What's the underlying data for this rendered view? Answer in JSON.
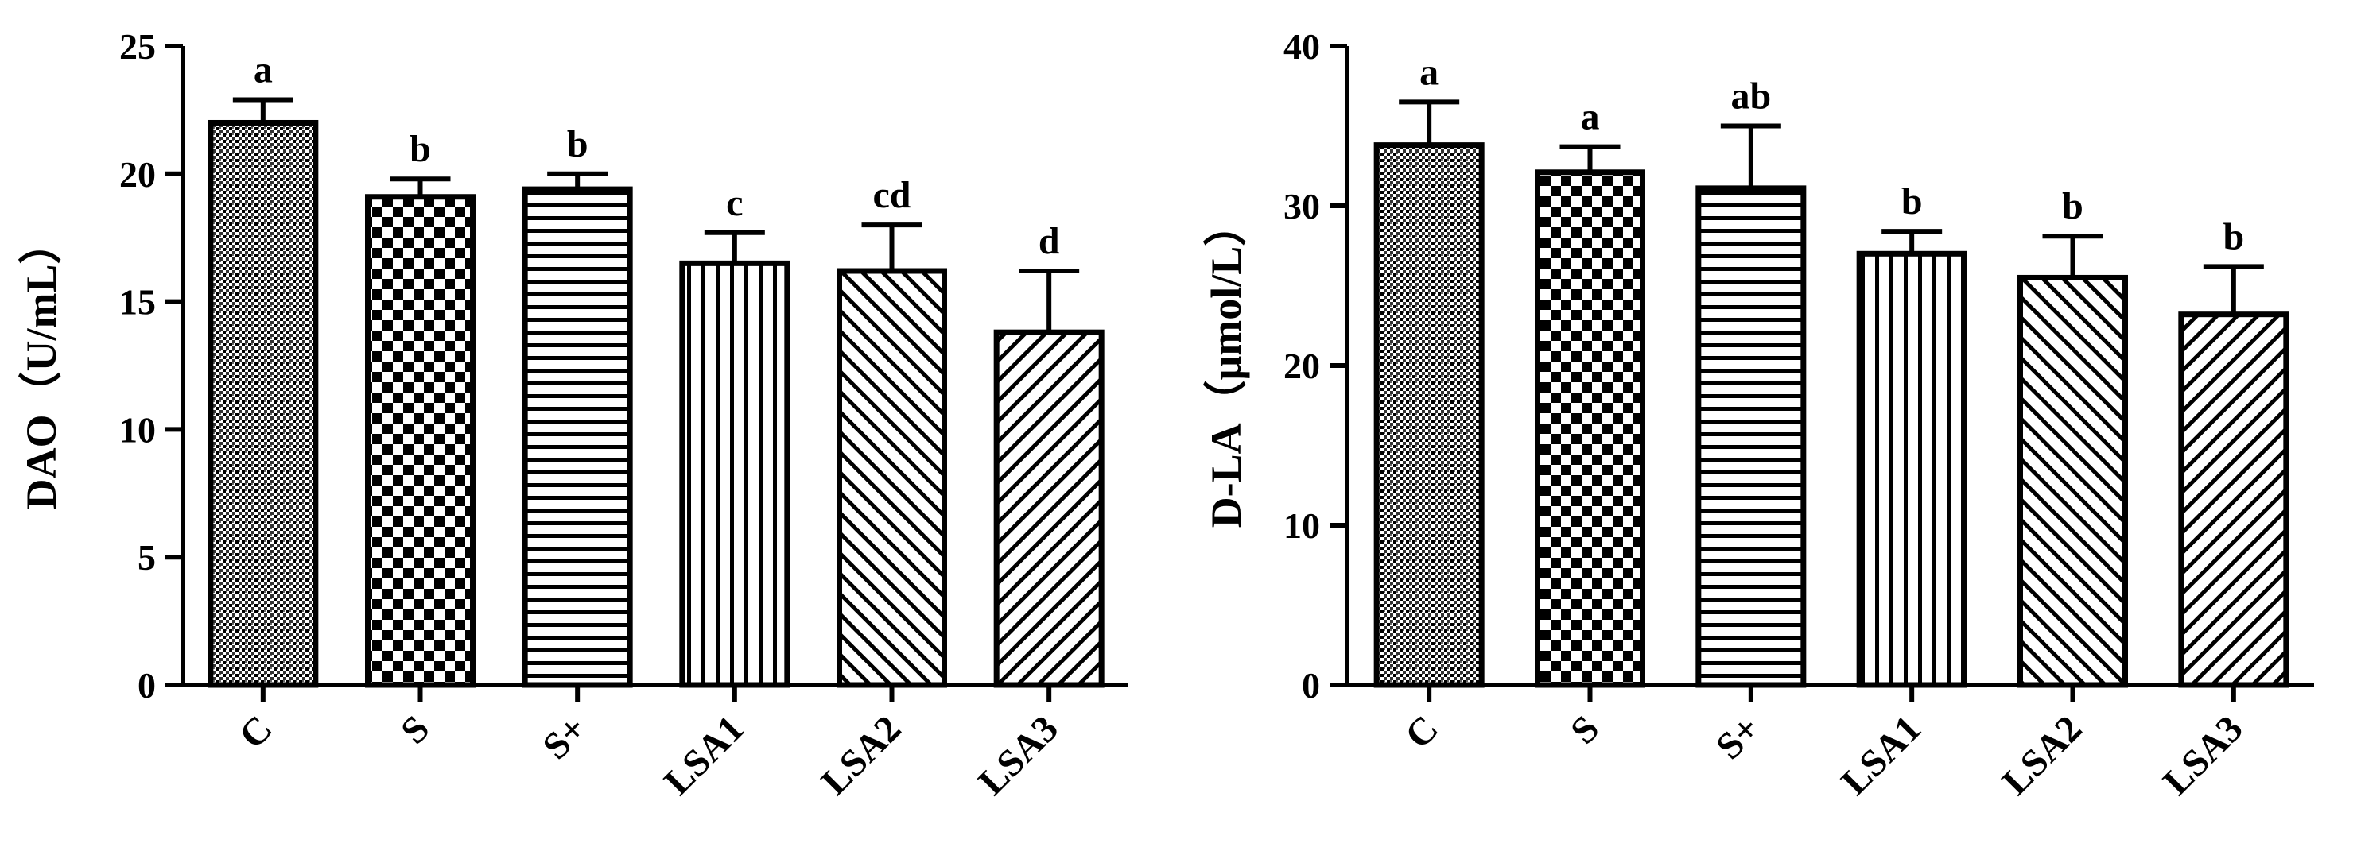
{
  "chart_data": [
    {
      "type": "bar",
      "categories": [
        "C",
        "S",
        "S+",
        "LSA1",
        "LSA2",
        "LSA3"
      ],
      "values": [
        22.0,
        19.1,
        19.4,
        16.5,
        16.2,
        13.8
      ],
      "errors": [
        0.9,
        0.7,
        0.6,
        1.2,
        1.8,
        2.4
      ],
      "significance": [
        "a",
        "b",
        "b",
        "c",
        "cd",
        "d"
      ],
      "ylabel": "DAO（U/mL）",
      "ylim": [
        0,
        25
      ],
      "yticks": [
        0,
        5,
        10,
        15,
        20,
        25
      ],
      "patterns": [
        "dots",
        "checker",
        "hlines",
        "vlines",
        "diag-right",
        "diag-left"
      ],
      "bar_color": "#000000"
    },
    {
      "type": "bar",
      "categories": [
        "C",
        "S",
        "S+",
        "LSA1",
        "LSA2",
        "LSA3"
      ],
      "values": [
        33.8,
        32.1,
        31.1,
        27.0,
        25.5,
        23.2
      ],
      "errors": [
        2.7,
        1.6,
        3.9,
        1.4,
        2.6,
        3.0
      ],
      "significance": [
        "a",
        "a",
        "ab",
        "b",
        "b",
        "b"
      ],
      "ylabel": "D-LA（μmol/L）",
      "ylim": [
        0,
        40
      ],
      "yticks": [
        0,
        10,
        20,
        30,
        40
      ],
      "patterns": [
        "dots",
        "checker",
        "hlines",
        "vlines",
        "diag-right",
        "diag-left"
      ],
      "bar_color": "#000000"
    }
  ]
}
